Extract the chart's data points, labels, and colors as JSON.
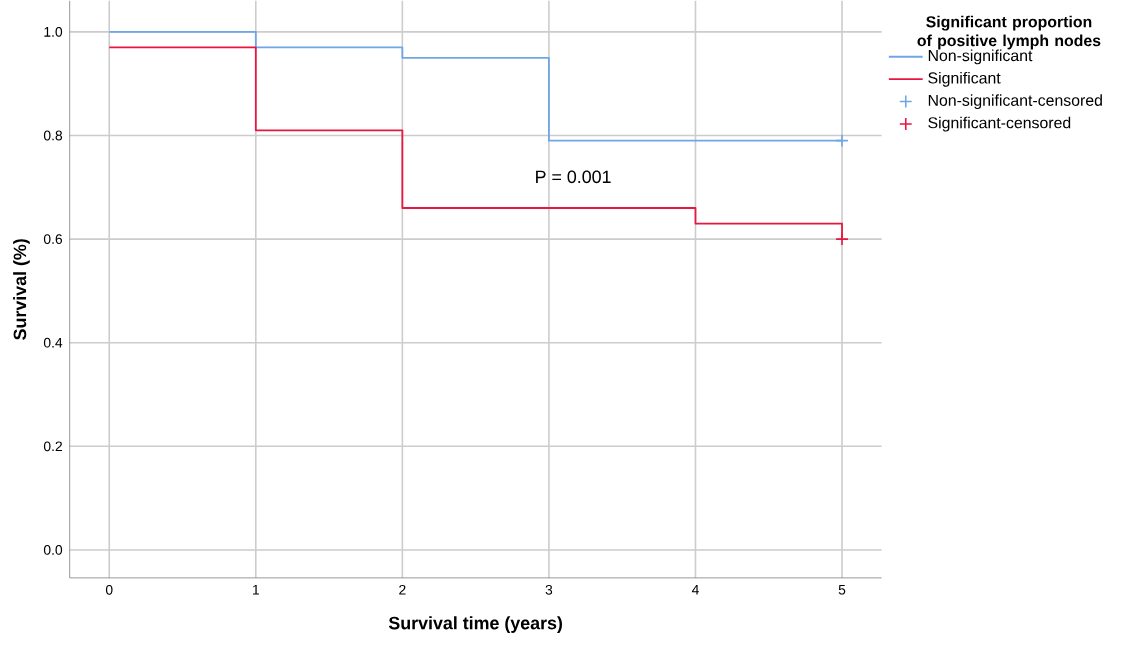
{
  "chart_data": {
    "type": "step",
    "xlabel": "Survival time (years)",
    "ylabel": "Survival (%)",
    "legend_title": "Significant proportion of positive lymph nodes",
    "annotations": [
      "P = 0.001"
    ],
    "xlim": [
      -0.27,
      5.27
    ],
    "ylim": [
      -0.054,
      1.06
    ],
    "xticks": [
      0,
      1,
      2,
      3,
      4,
      5
    ],
    "yticks": [
      {
        "value": 0,
        "label": "0.0"
      },
      {
        "value": 0.2,
        "label": "0.2"
      },
      {
        "value": 0.4,
        "label": "0.4"
      },
      {
        "value": 0.6,
        "label": "0.6"
      },
      {
        "value": 0.8,
        "label": "0.8"
      },
      {
        "value": 1,
        "label": "1.0"
      }
    ],
    "grid": true,
    "legend": "right",
    "series": [
      {
        "name": "Non-significant",
        "color": "#6fa6e6",
        "x": [
          0,
          1,
          2,
          3,
          5
        ],
        "values": [
          1.0,
          0.97,
          0.95,
          0.79,
          0.79
        ]
      },
      {
        "name": "Significant",
        "color": "#e8173f",
        "x": [
          0,
          1,
          2,
          4,
          5
        ],
        "values": [
          0.97,
          0.81,
          0.66,
          0.63,
          0.6
        ]
      },
      {
        "name": "Non-significant-censored",
        "type": "scatter",
        "marker": "cross",
        "color": "#6fa6e6",
        "x": [
          5
        ],
        "values": [
          0.79
        ]
      },
      {
        "name": "Significant-censored",
        "type": "scatter",
        "marker": "cross",
        "color": "#e8173f",
        "x": [
          5
        ],
        "values": [
          0.6
        ]
      }
    ]
  }
}
